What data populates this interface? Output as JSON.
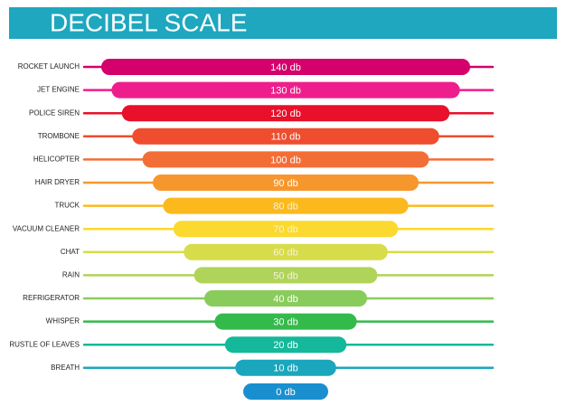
{
  "title": "DECIBEL SCALE",
  "rows": [
    {
      "label": "ROCKET LAUNCH",
      "level": "140 db",
      "color": "#d4006b"
    },
    {
      "label": "JET ENGINE",
      "level": "130 db",
      "color": "#ee1f8c"
    },
    {
      "label": "POLICE SIREN",
      "level": "120 db",
      "color": "#e8102a"
    },
    {
      "label": "TROMBONE",
      "level": "110 db",
      "color": "#ee4d2e"
    },
    {
      "label": "HELICOPTER",
      "level": "100 db",
      "color": "#f36e36"
    },
    {
      "label": "HAIR DRYER",
      "level": "90 db",
      "color": "#f6972e"
    },
    {
      "label": "TRUCK",
      "level": "80 db",
      "color": "#fbb91e"
    },
    {
      "label": "VACUUM CLEANER",
      "level": "70 db",
      "color": "#fbd92e"
    },
    {
      "label": "CHAT",
      "level": "60 db",
      "color": "#d7dc4a"
    },
    {
      "label": "RAIN",
      "level": "50 db",
      "color": "#b0d35a"
    },
    {
      "label": "REFRIGERATOR",
      "level": "40 db",
      "color": "#8acc5c"
    },
    {
      "label": "WHISPER",
      "level": "30 db",
      "color": "#34b94b"
    },
    {
      "label": "RUSTLE OF LEAVES",
      "level": "20 db",
      "color": "#14b89a"
    },
    {
      "label": "BREATH",
      "level": "10 db",
      "color": "#1aa6bd"
    }
  ],
  "bottom": {
    "level": "0 db",
    "color": "#1a8fd0"
  }
}
